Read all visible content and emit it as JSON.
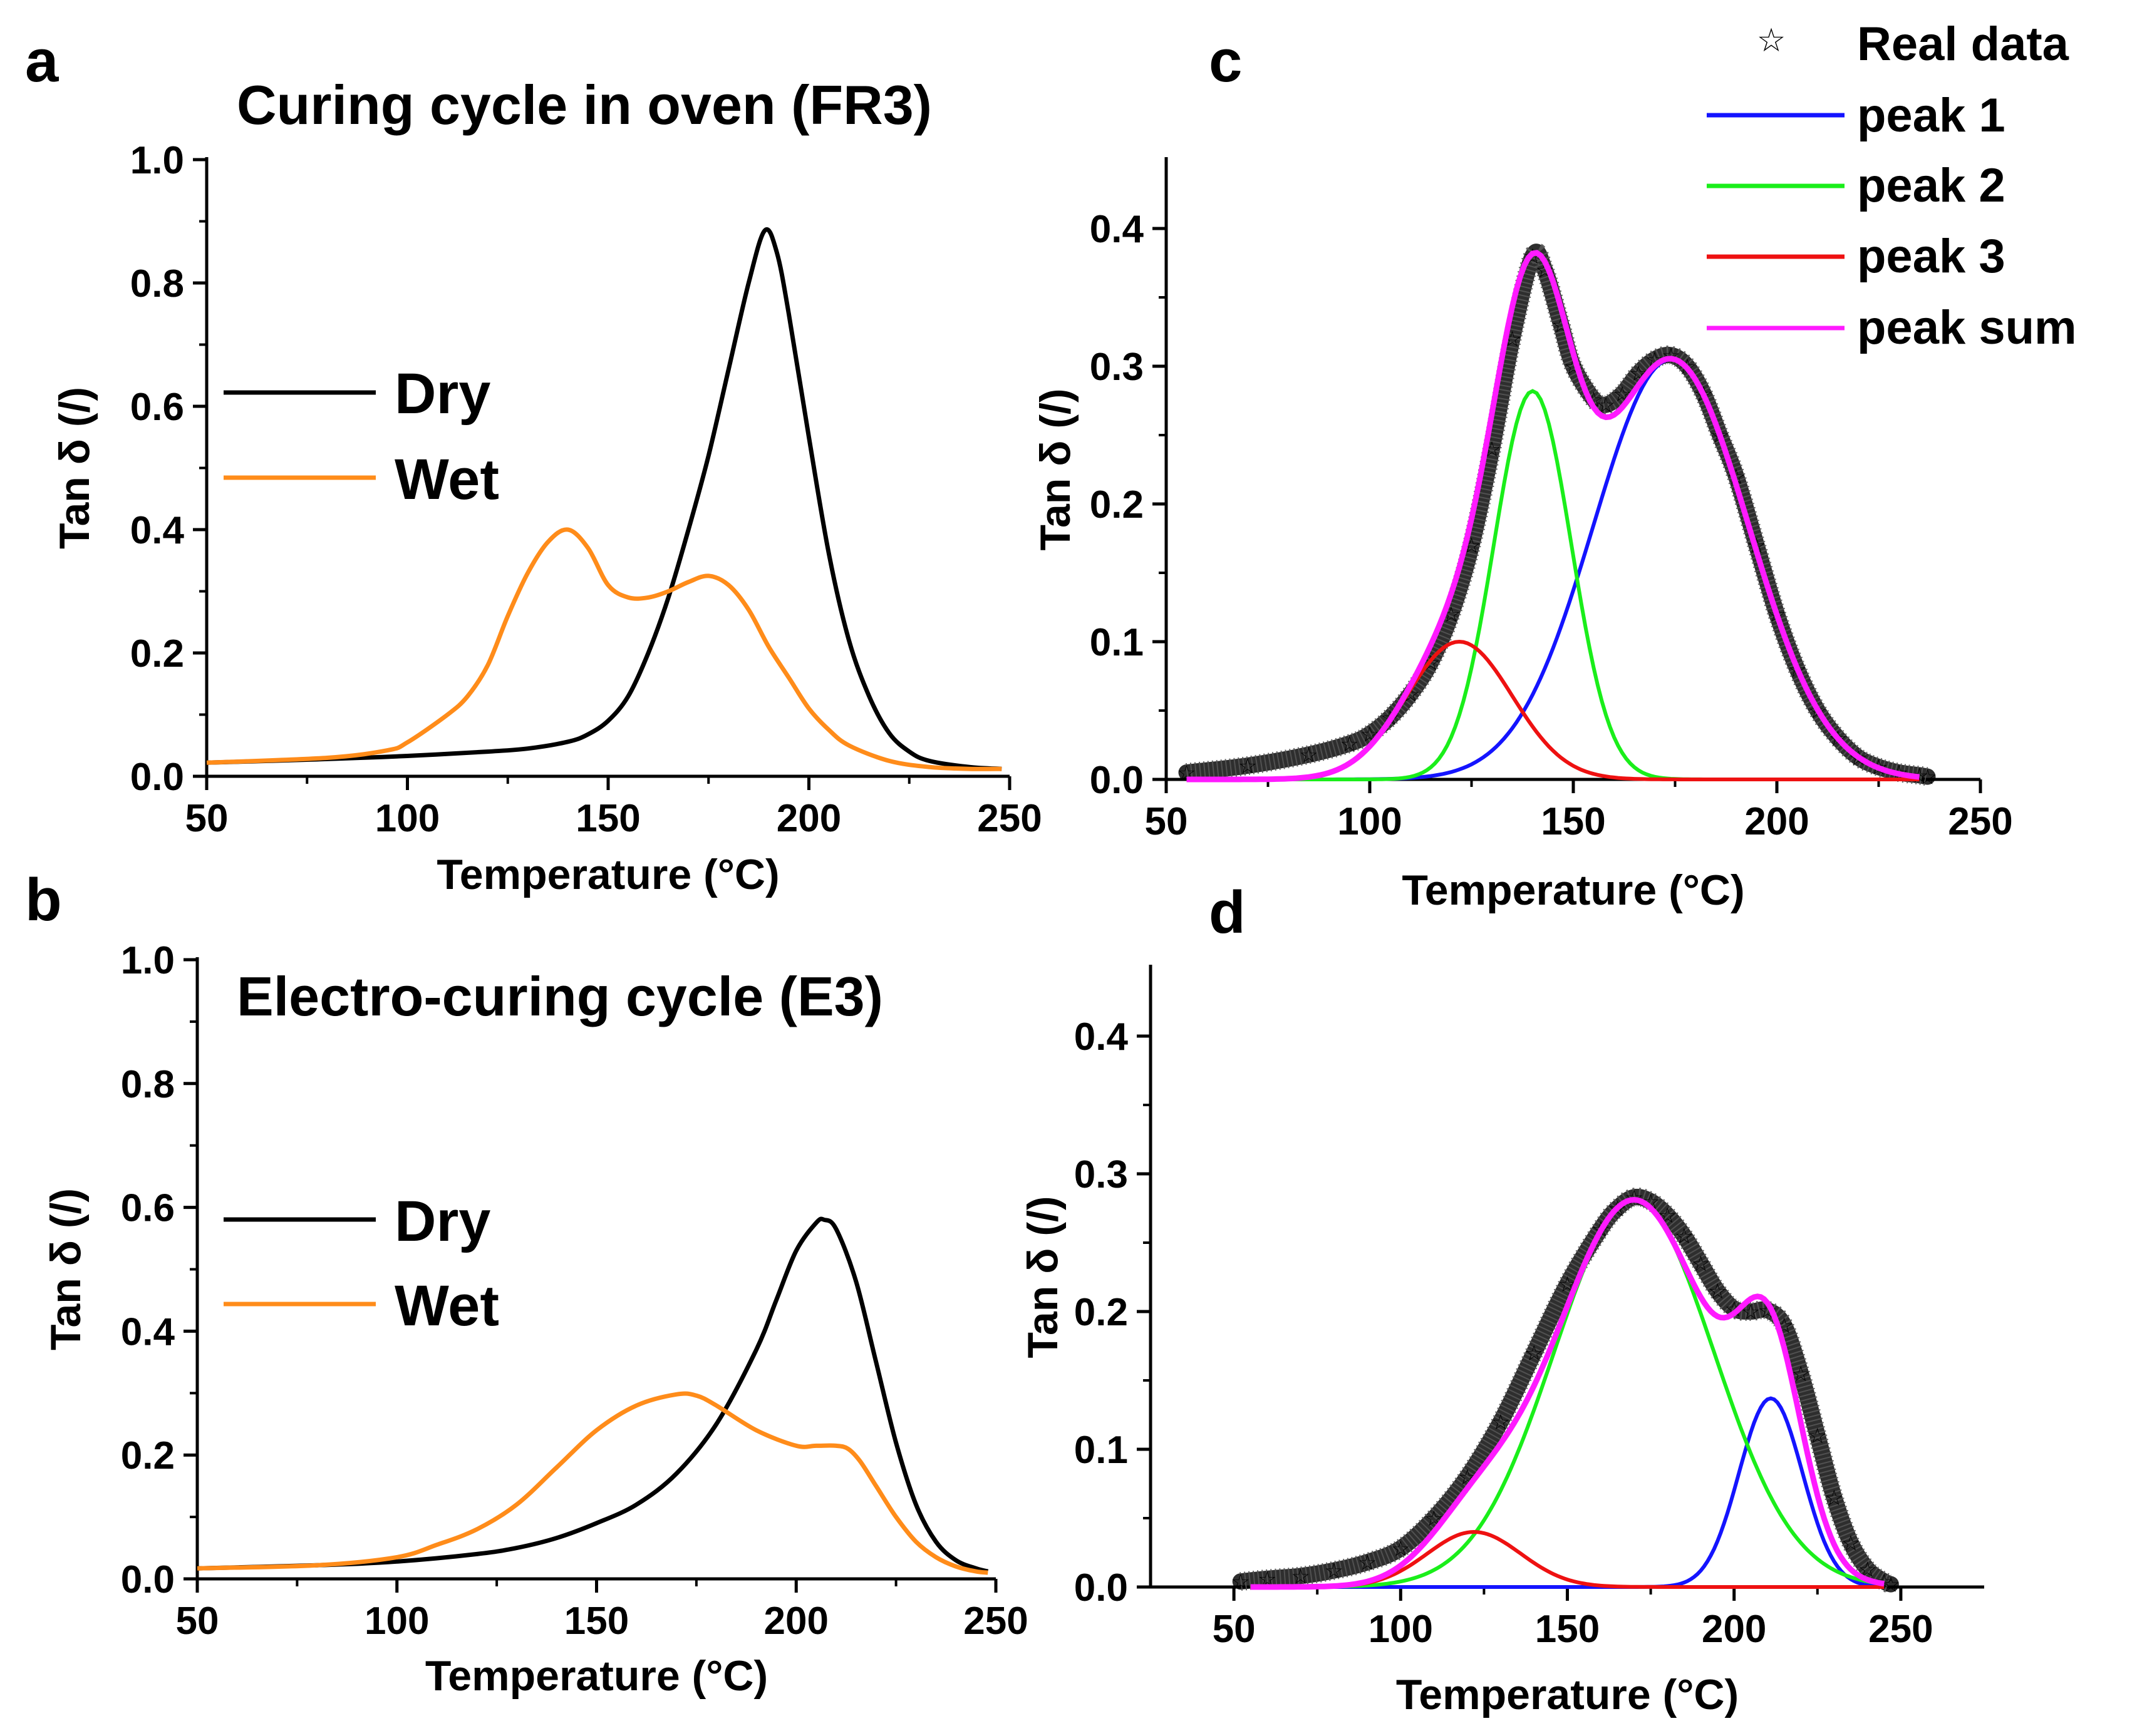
{
  "chart_data": [
    {
      "id": "a",
      "type": "line",
      "panel_label": "a",
      "title": "Curing cycle in oven (FR3)",
      "xlabel": "Temperature (°C)",
      "ylabel": "Tan δ (/)",
      "xlim": [
        50,
        250
      ],
      "ylim": [
        0,
        1.0
      ],
      "xticks": [
        50,
        100,
        150,
        200,
        250
      ],
      "yticks": [
        0.0,
        0.2,
        0.4,
        0.6,
        0.8,
        1.0
      ],
      "xtick_labels": [
        "50",
        "100",
        "150",
        "200",
        "250"
      ],
      "ytick_labels": [
        "0.0",
        "0.2",
        "0.4",
        "0.6",
        "0.8",
        "1.0"
      ],
      "legend": {
        "position": "center-left",
        "entries": [
          "Dry",
          "Wet"
        ]
      },
      "series": [
        {
          "name": "Dry",
          "color": "#000000",
          "x": [
            50,
            80,
            100,
            120,
            130,
            140,
            145,
            150,
            155,
            160,
            165,
            170,
            175,
            180,
            185,
            189,
            192,
            195,
            200,
            205,
            210,
            215,
            220,
            225,
            230,
            240,
            248
          ],
          "y": [
            0.022,
            0.028,
            0.033,
            0.04,
            0.045,
            0.056,
            0.068,
            0.09,
            0.13,
            0.2,
            0.29,
            0.4,
            0.52,
            0.66,
            0.8,
            0.885,
            0.85,
            0.75,
            0.55,
            0.36,
            0.22,
            0.13,
            0.07,
            0.04,
            0.025,
            0.015,
            0.012
          ]
        },
        {
          "name": "Wet",
          "color": "#ff8c1a",
          "x": [
            50,
            80,
            95,
            100,
            110,
            115,
            120,
            125,
            130,
            135,
            140,
            145,
            150,
            155,
            160,
            165,
            170,
            175,
            180,
            185,
            190,
            195,
            200,
            205,
            210,
            220,
            230,
            240,
            248
          ],
          "y": [
            0.022,
            0.03,
            0.042,
            0.055,
            0.1,
            0.13,
            0.18,
            0.26,
            0.33,
            0.38,
            0.4,
            0.37,
            0.31,
            0.29,
            0.29,
            0.3,
            0.315,
            0.325,
            0.31,
            0.27,
            0.21,
            0.16,
            0.11,
            0.075,
            0.05,
            0.025,
            0.015,
            0.012,
            0.012
          ]
        }
      ]
    },
    {
      "id": "b",
      "type": "line",
      "panel_label": "b",
      "title": "Electro-curing cycle (E3)",
      "xlabel": "Temperature (°C)",
      "ylabel": "Tan δ (/)",
      "xlim": [
        50,
        250
      ],
      "ylim": [
        0,
        1.0
      ],
      "xticks": [
        50,
        100,
        150,
        200,
        250
      ],
      "yticks": [
        0.0,
        0.2,
        0.4,
        0.6,
        0.8,
        1.0
      ],
      "xtick_labels": [
        "50",
        "100",
        "150",
        "200",
        "250"
      ],
      "ytick_labels": [
        "0.0",
        "0.2",
        "0.4",
        "0.6",
        "0.8",
        "1.0"
      ],
      "legend": {
        "position": "center-left",
        "entries": [
          "Dry",
          "Wet"
        ]
      },
      "series": [
        {
          "name": "Dry",
          "color": "#000000",
          "x": [
            50,
            80,
            100,
            120,
            130,
            140,
            150,
            160,
            170,
            180,
            190,
            195,
            200,
            205,
            207,
            210,
            215,
            220,
            225,
            230,
            235,
            240,
            245,
            248
          ],
          "y": [
            0.017,
            0.022,
            0.028,
            0.04,
            0.05,
            0.066,
            0.09,
            0.12,
            0.17,
            0.25,
            0.37,
            0.45,
            0.53,
            0.575,
            0.58,
            0.565,
            0.48,
            0.35,
            0.22,
            0.12,
            0.06,
            0.03,
            0.017,
            0.012
          ]
        },
        {
          "name": "Wet",
          "color": "#ff8c1a",
          "x": [
            50,
            80,
            100,
            110,
            120,
            130,
            140,
            150,
            160,
            170,
            175,
            180,
            190,
            200,
            205,
            210,
            213,
            216,
            220,
            225,
            230,
            235,
            240,
            245,
            248
          ],
          "y": [
            0.017,
            0.022,
            0.035,
            0.055,
            0.08,
            0.12,
            0.18,
            0.24,
            0.28,
            0.298,
            0.296,
            0.28,
            0.24,
            0.215,
            0.215,
            0.215,
            0.21,
            0.19,
            0.15,
            0.1,
            0.06,
            0.035,
            0.02,
            0.012,
            0.01
          ]
        }
      ]
    },
    {
      "id": "c",
      "type": "scatter+line",
      "panel_label": "c",
      "xlabel": "Temperature (°C)",
      "ylabel": "Tan δ (/)",
      "xlim": [
        50,
        250
      ],
      "ylim": [
        0,
        0.45
      ],
      "xticks": [
        50,
        100,
        150,
        200,
        250
      ],
      "yticks": [
        0.0,
        0.1,
        0.2,
        0.3,
        0.4
      ],
      "xtick_labels": [
        "50",
        "100",
        "150",
        "200",
        "250"
      ],
      "ytick_labels": [
        "0.0",
        "0.1",
        "0.2",
        "0.3",
        "0.4"
      ],
      "legend": {
        "position": "top-right",
        "entries": [
          "Real data",
          "peak 1",
          "peak 2",
          "peak 3",
          "peak sum"
        ]
      },
      "peaks": [
        {
          "name": "peak 1",
          "color": "#1414ff",
          "amplitude": 0.305,
          "center": 174,
          "sigma": 19
        },
        {
          "name": "peak 2",
          "color": "#1aee1a",
          "amplitude": 0.282,
          "center": 140,
          "sigma": 9.5
        },
        {
          "name": "peak 3",
          "color": "#ee1111",
          "amplitude": 0.1,
          "center": 122,
          "sigma": 13
        }
      ],
      "peak_sum": {
        "name": "peak sum",
        "color": "#ff1aff",
        "x_range": [
          55,
          235
        ]
      },
      "real_data": {
        "name": "Real data",
        "marker": "star",
        "x": [
          55,
          70,
          85,
          95,
          100,
          105,
          110,
          115,
          120,
          125,
          130,
          135,
          140,
          143,
          147,
          150,
          155,
          158,
          162,
          166,
          170,
          174,
          178,
          182,
          186,
          190,
          195,
          200,
          205,
          210,
          215,
          220,
          225,
          230,
          235,
          237
        ],
        "y": [
          0.005,
          0.01,
          0.018,
          0.026,
          0.033,
          0.045,
          0.062,
          0.085,
          0.12,
          0.17,
          0.24,
          0.32,
          0.38,
          0.37,
          0.33,
          0.3,
          0.276,
          0.272,
          0.28,
          0.295,
          0.305,
          0.308,
          0.3,
          0.28,
          0.25,
          0.22,
          0.17,
          0.12,
          0.08,
          0.05,
          0.03,
          0.016,
          0.009,
          0.005,
          0.003,
          0.002
        ]
      }
    },
    {
      "id": "d",
      "type": "scatter+line",
      "panel_label": "d",
      "xlabel": "Temperature (°C)",
      "ylabel": "Tan δ (/)",
      "xlim": [
        25,
        275
      ],
      "ylim": [
        0,
        0.45
      ],
      "xticks": [
        50,
        100,
        150,
        200,
        250
      ],
      "yticks": [
        0.0,
        0.1,
        0.2,
        0.3,
        0.4
      ],
      "xtick_labels": [
        "50",
        "100",
        "150",
        "200",
        "250"
      ],
      "ytick_labels": [
        "0.0",
        "0.1",
        "0.2",
        "0.3",
        "0.4"
      ],
      "peaks": [
        {
          "name": "peak 1",
          "color": "#1414ff",
          "amplitude": 0.137,
          "center": 211,
          "sigma": 9.5
        },
        {
          "name": "peak 2",
          "color": "#1aee1a",
          "amplitude": 0.281,
          "center": 170,
          "sigma": 24
        },
        {
          "name": "peak 3",
          "color": "#ee1111",
          "amplitude": 0.04,
          "center": 122,
          "sigma": 14
        }
      ],
      "peak_sum": {
        "name": "peak sum",
        "color": "#ff1aff",
        "x_range": [
          55,
          245
        ]
      },
      "real_data": {
        "name": "Real data",
        "marker": "star",
        "x": [
          52,
          60,
          70,
          80,
          90,
          100,
          110,
          120,
          130,
          140,
          150,
          160,
          165,
          170,
          175,
          180,
          185,
          190,
          195,
          200,
          205,
          210,
          215,
          220,
          225,
          230,
          235,
          240,
          245,
          247
        ],
        "y": [
          0.004,
          0.006,
          0.008,
          0.012,
          0.018,
          0.028,
          0.05,
          0.08,
          0.12,
          0.17,
          0.22,
          0.26,
          0.275,
          0.283,
          0.28,
          0.27,
          0.255,
          0.235,
          0.215,
          0.202,
          0.2,
          0.201,
          0.19,
          0.155,
          0.11,
          0.065,
          0.032,
          0.013,
          0.004,
          0.002
        ]
      }
    }
  ]
}
